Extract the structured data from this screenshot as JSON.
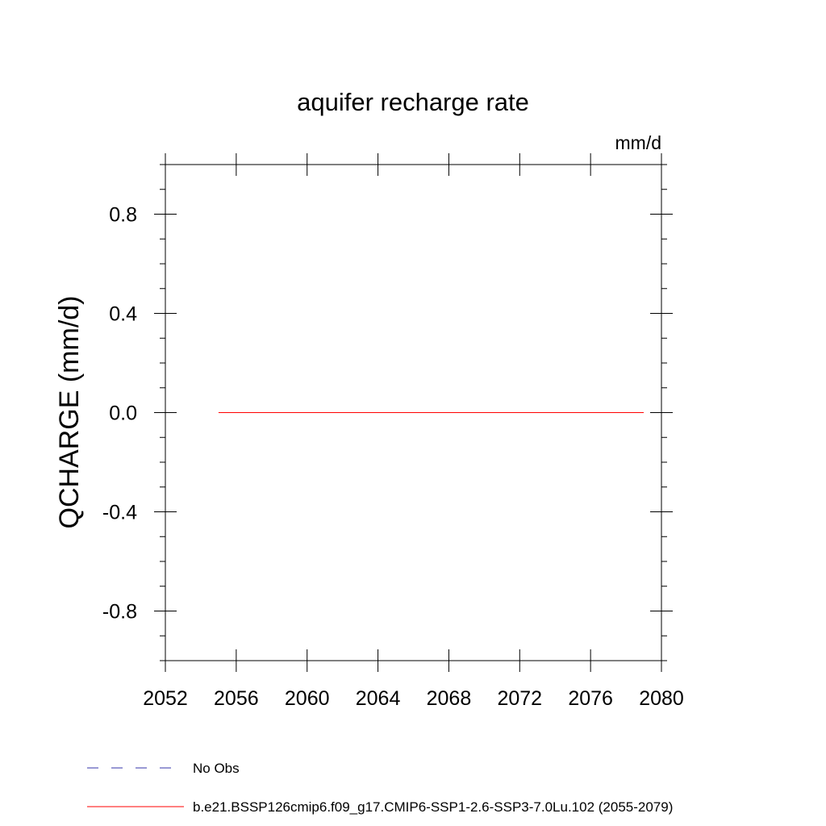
{
  "chart_data": {
    "type": "line",
    "title": "aquifer recharge rate",
    "units": "mm/d",
    "xlabel": "",
    "ylabel": "QCHARGE  (mm/d)",
    "xlim": [
      2052,
      2080
    ],
    "ylim": [
      -1.0,
      1.0
    ],
    "x_ticks": [
      2052,
      2056,
      2060,
      2064,
      2068,
      2072,
      2076,
      2080
    ],
    "x_tick_labels": [
      "2052",
      "2056",
      "2060",
      "2064",
      "2068",
      "2072",
      "2076",
      "2080"
    ],
    "y_ticks": [
      0.8,
      0.4,
      0.0,
      -0.4,
      -0.8
    ],
    "y_tick_labels": [
      "0.8",
      "0.4",
      "0.0",
      "-0.4",
      "-0.8"
    ],
    "grid": false,
    "legend_position": "bottom",
    "series": [
      {
        "name": "b.e21.BSSP126cmip6.f09_g17.CMIP6-SSP1-2.6-SSP3-7.0Lu.102 (2055-2079)",
        "color": "#ff0000",
        "style": "solid",
        "x": [
          2055,
          2079
        ],
        "y": [
          0.0,
          0.0
        ]
      }
    ],
    "legend": [
      {
        "label": "No Obs",
        "color": "#3333aa",
        "style": "dashed"
      },
      {
        "label": "b.e21.BSSP126cmip6.f09_g17.CMIP6-SSP1-2.6-SSP3-7.0Lu.102 (2055-2079)",
        "color": "#ff0000",
        "style": "solid"
      }
    ]
  }
}
